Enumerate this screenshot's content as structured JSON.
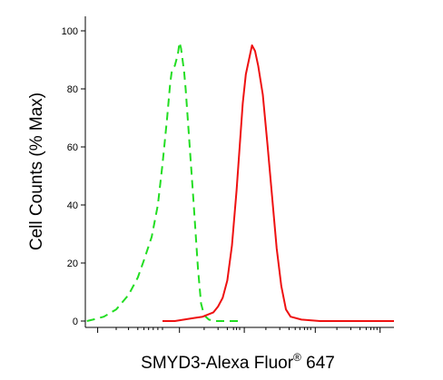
{
  "chart_data": {
    "type": "line",
    "title": "",
    "xlabel": "SMYD3-Alexa Fluor",
    "xlabel_superscript": "®",
    "xlabel_suffix": " 647",
    "ylabel": "Cell Counts (% Max)",
    "xlim": [
      0,
      100
    ],
    "ylim": [
      0,
      100
    ],
    "y_ticks": [
      0,
      20,
      40,
      60,
      80,
      100
    ],
    "y_tick_labels": [
      "0",
      "20",
      "40",
      "60",
      "80",
      "100"
    ],
    "grid": false,
    "legend": "none",
    "series": [
      {
        "color": "#22dd22",
        "style": "dashed",
        "x": [
          0.5,
          2.5,
          6,
          10,
          14,
          17,
          19,
          21.5,
          23.5,
          25,
          26.5,
          27.5,
          28,
          29,
          30,
          30.5,
          31,
          32,
          32.5,
          33.5,
          35,
          36.5,
          37.5,
          38.5,
          40,
          42,
          45,
          50
        ],
        "y": [
          0,
          0.5,
          1.5,
          4,
          9,
          15,
          21,
          29,
          40,
          54,
          70,
          82,
          86,
          88,
          92,
          96,
          94,
          86,
          80,
          65,
          42,
          18,
          6,
          2,
          0.5,
          0,
          0,
          0
        ]
      },
      {
        "color": "#ee1111",
        "style": "solid",
        "x": [
          25,
          29,
          32,
          35,
          38,
          41.5,
          43,
          44.5,
          46,
          47.5,
          49,
          51,
          52,
          53,
          54,
          55,
          56,
          57.5,
          59,
          60.5,
          62,
          63.5,
          65,
          66.5,
          70,
          76,
          82,
          90,
          100
        ],
        "y": [
          0,
          0,
          0.5,
          1,
          1.5,
          3,
          5,
          8,
          14,
          26,
          45,
          75,
          85,
          90,
          95,
          93,
          88,
          78,
          61,
          43,
          25,
          12,
          4,
          1.5,
          0.5,
          0,
          0,
          0,
          0
        ]
      }
    ]
  }
}
